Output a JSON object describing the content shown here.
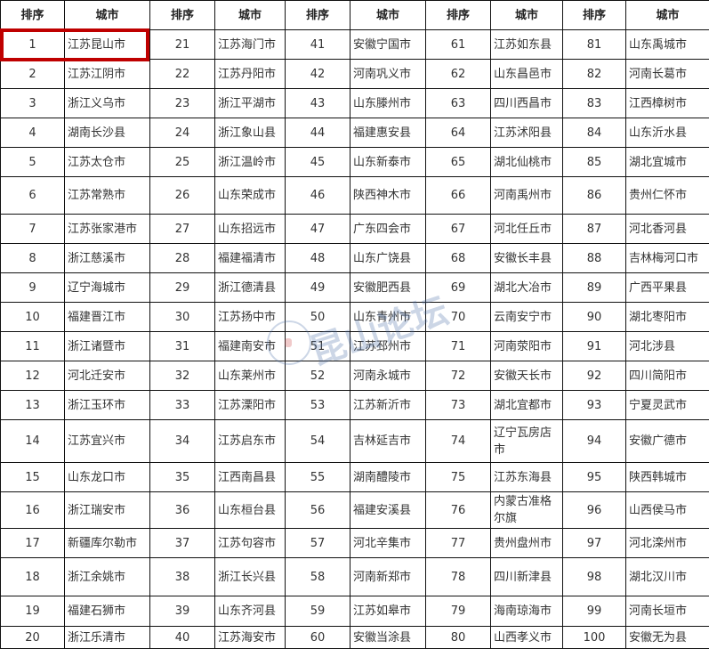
{
  "headers": {
    "rank": "排序",
    "city": "城市"
  },
  "highlight_color": "#bf0000",
  "highlighted_rank": 1,
  "watermark": "昆山论坛",
  "rankings": [
    [
      "江苏昆山市",
      "江苏海门市",
      "安徽宁国市",
      "江苏如东县",
      "山东禹城市"
    ],
    [
      "江苏江阴市",
      "江苏丹阳市",
      "河南巩义市",
      "山东昌邑市",
      "河南长葛市"
    ],
    [
      "浙江义乌市",
      "浙江平湖市",
      "山东滕州市",
      "四川西昌市",
      "江西樟树市"
    ],
    [
      "湖南长沙县",
      "浙江象山县",
      "福建惠安县",
      "江苏沭阳县",
      "山东沂水县"
    ],
    [
      "江苏太仓市",
      "浙江温岭市",
      "山东新泰市",
      "湖北仙桃市",
      "湖北宜城市"
    ],
    [
      "江苏常熟市",
      "山东荣成市",
      "陕西神木市",
      "河南禹州市",
      "贵州仁怀市"
    ],
    [
      "江苏张家港市",
      "山东招远市",
      "广东四会市",
      "河北任丘市",
      "河北香河县"
    ],
    [
      "浙江慈溪市",
      "福建福清市",
      "山东广饶县",
      "安徽长丰县",
      "吉林梅河口市"
    ],
    [
      "辽宁海城市",
      "浙江德清县",
      "安徽肥西县",
      "湖北大冶市",
      "广西平果县"
    ],
    [
      "福建晋江市",
      "江苏扬中市",
      "山东青州市",
      "云南安宁市",
      "湖北枣阳市"
    ],
    [
      "浙江诸暨市",
      "福建南安市",
      "江苏邳州市",
      "河南荥阳市",
      "河北涉县"
    ],
    [
      "河北迁安市",
      "山东莱州市",
      "河南永城市",
      "安徽天长市",
      "四川简阳市"
    ],
    [
      "浙江玉环市",
      "江苏溧阳市",
      "江苏新沂市",
      "湖北宜都市",
      "宁夏灵武市"
    ],
    [
      "江苏宜兴市",
      "江苏启东市",
      "吉林延吉市",
      "辽宁瓦房店市",
      "安徽广德市"
    ],
    [
      "山东龙口市",
      "江西南昌县",
      "湖南醴陵市",
      "江苏东海县",
      "陕西韩城市"
    ],
    [
      "浙江瑞安市",
      "山东桓台县",
      "福建安溪县",
      "内蒙古准格尔旗",
      "山西侯马市"
    ],
    [
      "新疆库尔勒市",
      "江苏句容市",
      "河北辛集市",
      "贵州盘州市",
      "河北滦州市"
    ],
    [
      "浙江余姚市",
      "浙江长兴县",
      "河南新郑市",
      "四川新津县",
      "湖北汉川市"
    ],
    [
      "福建石狮市",
      "山东齐河县",
      "江苏如皋市",
      "海南琼海市",
      "河南长垣市"
    ],
    [
      "浙江乐清市",
      "江苏海安市",
      "安徽当涂县",
      "山西孝义市",
      "安徽无为县"
    ]
  ]
}
